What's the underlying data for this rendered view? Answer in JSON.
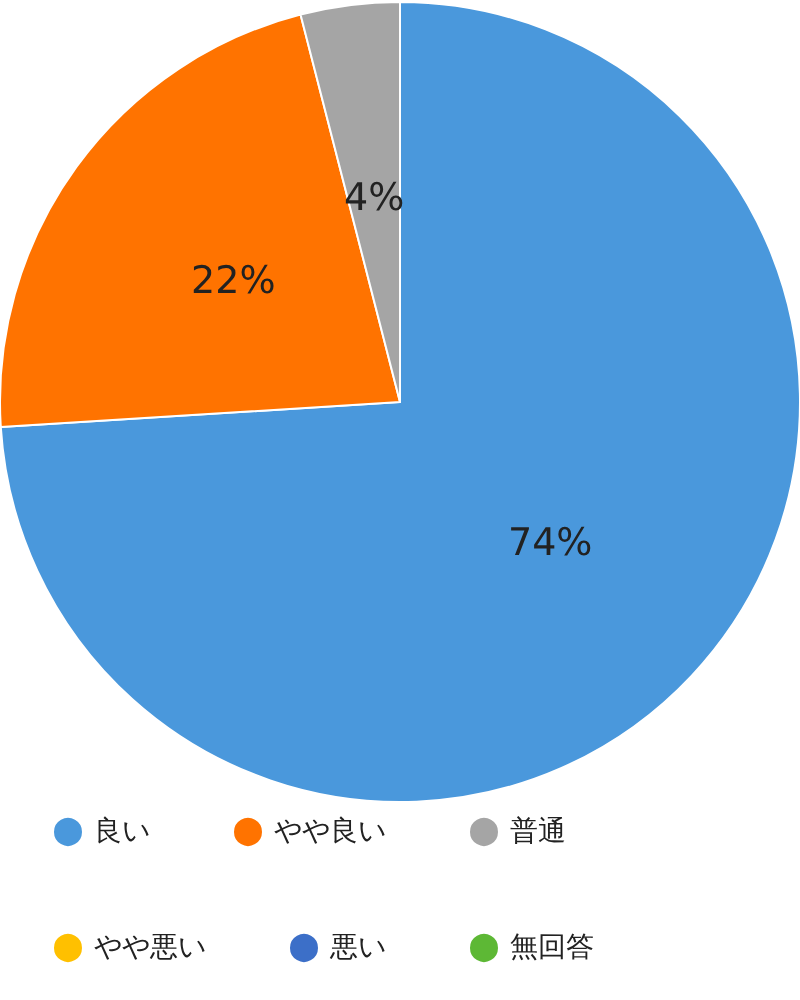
{
  "chart_data": {
    "type": "pie",
    "categories": [
      "良い",
      "やや良い",
      "普通",
      "やや悪い",
      "悪い",
      "無回答"
    ],
    "values": [
      74,
      22,
      4,
      0,
      0,
      0
    ],
    "colors": [
      "#4a98dc",
      "#ff7300",
      "#a5a5a5",
      "#ffc000",
      "#3c6fc8",
      "#5db835"
    ],
    "value_labels": [
      "74%",
      "22%",
      "4%",
      null,
      null,
      null
    ],
    "legend": "bottom"
  }
}
